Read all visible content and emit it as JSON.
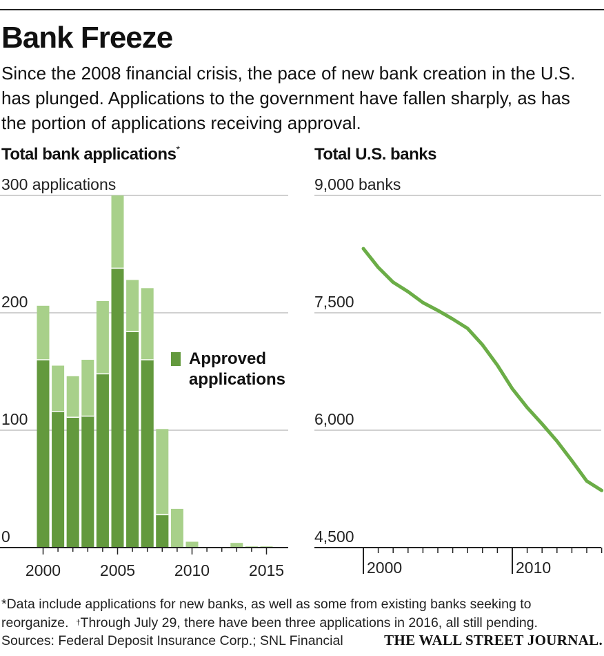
{
  "header": {
    "title": "Bank Freeze",
    "subtitle": "Since the 2008 financial crisis, the pace of new bank creation in the U.S. has plunged. Applications to the government have fallen sharply, as has the portion of applications receiving approval."
  },
  "footer": {
    "footnote_asterisk": "*",
    "footnote_text_1": "Data include applications for new banks, as well as some from existing banks seeking to reorganize.",
    "footnote_dagger": "†",
    "footnote_text_2": "Through July 29, there have been three applications in 2016, all still pending.",
    "source": "Sources: Federal Deposit Insurance Corp.; SNL Financial",
    "publisher": "THE WALL STREET JOURNAL."
  },
  "colors": {
    "total_bar": "#a8d08a",
    "approved_bar": "#63993d",
    "line": "#6bad47",
    "grid": "#b5b5b5",
    "axis": "#222222"
  },
  "chart_data": [
    {
      "type": "bar",
      "title": "Total bank applications",
      "title_marker": "*",
      "ylim": [
        0,
        300
      ],
      "yticks": [
        {
          "value": 0,
          "label": "0"
        },
        {
          "value": 100,
          "label": "100"
        },
        {
          "value": 200,
          "label": "200"
        },
        {
          "value": 300,
          "label": "300 applications"
        }
      ],
      "xticks": [
        {
          "value": 2000,
          "label": "2000"
        },
        {
          "value": 2005,
          "label": "2005"
        },
        {
          "value": 2010,
          "label": "2010"
        },
        {
          "value": 2015,
          "label": "2015"
        }
      ],
      "x": [
        2000,
        2001,
        2002,
        2003,
        2004,
        2005,
        2006,
        2007,
        2008,
        2009,
        2010,
        2011,
        2012,
        2013,
        2014,
        2015
      ],
      "series": [
        {
          "name": "Total",
          "values": [
            206,
            155,
            146,
            160,
            210,
            300,
            228,
            221,
            101,
            33,
            5,
            0,
            0,
            4,
            1,
            1
          ]
        },
        {
          "name": "Approved applications",
          "values": [
            160,
            116,
            111,
            112,
            148,
            238,
            184,
            160,
            28,
            0,
            0,
            0,
            0,
            0,
            0,
            0
          ]
        }
      ],
      "legend": {
        "label": "Approved applications",
        "placement": "center-right"
      }
    },
    {
      "type": "line",
      "title": "Total U.S. banks",
      "ylim": [
        4500,
        9000
      ],
      "yticks": [
        {
          "value": 4500,
          "label": "4,500"
        },
        {
          "value": 6000,
          "label": "6,000"
        },
        {
          "value": 7500,
          "label": "7,500"
        },
        {
          "value": 9000,
          "label": "9,000 banks"
        }
      ],
      "xlim": [
        1999.5,
        2016.5
      ],
      "xticks": [
        {
          "value": 2000,
          "label": "2000"
        },
        {
          "value": 2010,
          "label": "2010"
        }
      ],
      "x": [
        2000,
        2001,
        2002,
        2003,
        2004,
        2005,
        2006,
        2007,
        2008,
        2009,
        2010,
        2011,
        2012,
        2013,
        2014,
        2015,
        2016
      ],
      "series": [
        {
          "name": "Total U.S. banks",
          "values": [
            8320,
            8080,
            7890,
            7770,
            7630,
            7530,
            7420,
            7300,
            7090,
            6830,
            6530,
            6290,
            6080,
            5860,
            5610,
            5350,
            5230
          ]
        }
      ]
    }
  ]
}
